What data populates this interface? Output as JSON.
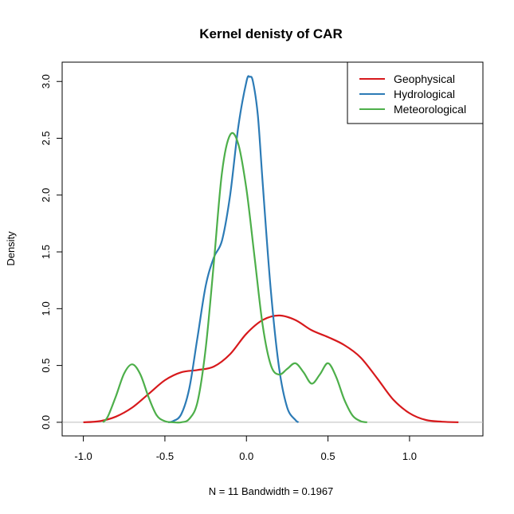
{
  "chart_data": {
    "type": "line",
    "title": "Kernel denisty of CAR",
    "xlabel": "N = 11   Bandwidth = 0.1967",
    "ylabel": "Density",
    "xlim": [
      -1.13,
      1.45
    ],
    "ylim": [
      -0.12,
      3.17
    ],
    "x_ticks": [
      -1.0,
      -0.5,
      0.0,
      0.5,
      1.0
    ],
    "x_tick_labels": [
      "-1.0",
      "-0.5",
      "0.0",
      "0.5",
      "1.0"
    ],
    "y_ticks": [
      0.0,
      0.5,
      1.0,
      1.5,
      2.0,
      2.5,
      3.0
    ],
    "y_tick_labels": [
      "0.0",
      "0.5",
      "1.0",
      "1.5",
      "2.0",
      "2.5",
      "3.0"
    ],
    "grid": false,
    "baseline": 0,
    "legend_position": "top-right",
    "series": [
      {
        "name": "Geophysical",
        "color": "#d7191c",
        "x": [
          -1.0,
          -0.9,
          -0.8,
          -0.7,
          -0.6,
          -0.5,
          -0.4,
          -0.3,
          -0.2,
          -0.1,
          0.0,
          0.1,
          0.2,
          0.3,
          0.4,
          0.5,
          0.6,
          0.7,
          0.8,
          0.9,
          1.0,
          1.1,
          1.2,
          1.3
        ],
        "y": [
          0.0,
          0.01,
          0.05,
          0.13,
          0.25,
          0.37,
          0.44,
          0.46,
          0.49,
          0.6,
          0.78,
          0.9,
          0.94,
          0.9,
          0.81,
          0.75,
          0.68,
          0.57,
          0.39,
          0.2,
          0.08,
          0.02,
          0.005,
          0.0
        ]
      },
      {
        "name": "Hydrological",
        "color": "#2c7bb6",
        "x": [
          -0.48,
          -0.45,
          -0.4,
          -0.35,
          -0.3,
          -0.25,
          -0.2,
          -0.15,
          -0.1,
          -0.05,
          0.0,
          0.02,
          0.04,
          0.07,
          0.1,
          0.15,
          0.2,
          0.25,
          0.3,
          0.32
        ],
        "y": [
          0.0,
          0.01,
          0.07,
          0.3,
          0.75,
          1.2,
          1.45,
          1.6,
          2.0,
          2.6,
          3.0,
          3.04,
          3.0,
          2.7,
          2.1,
          1.15,
          0.48,
          0.13,
          0.02,
          0.0
        ]
      },
      {
        "name": "Meteorological",
        "color": "#4daf4a",
        "x": [
          -0.88,
          -0.85,
          -0.8,
          -0.75,
          -0.7,
          -0.65,
          -0.6,
          -0.55,
          -0.5,
          -0.45,
          -0.4,
          -0.35,
          -0.3,
          -0.25,
          -0.2,
          -0.15,
          -0.1,
          -0.05,
          0.0,
          0.05,
          0.1,
          0.15,
          0.2,
          0.25,
          0.3,
          0.35,
          0.4,
          0.45,
          0.5,
          0.55,
          0.6,
          0.65,
          0.7,
          0.74
        ],
        "y": [
          0.0,
          0.05,
          0.23,
          0.43,
          0.51,
          0.42,
          0.22,
          0.06,
          0.01,
          0.0,
          0.0,
          0.03,
          0.18,
          0.65,
          1.4,
          2.2,
          2.53,
          2.45,
          2.05,
          1.45,
          0.85,
          0.5,
          0.42,
          0.47,
          0.52,
          0.44,
          0.34,
          0.42,
          0.52,
          0.4,
          0.2,
          0.06,
          0.01,
          0.0
        ]
      }
    ]
  }
}
